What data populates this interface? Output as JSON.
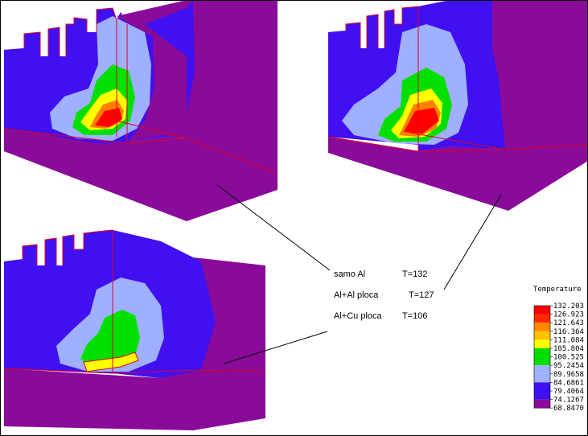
{
  "colors": {
    "c1": "#ff0000",
    "c2": "#ff7f00",
    "c3": "#ffd200",
    "c4": "#ffff00",
    "c5": "#00e000",
    "c6": "#9fb0ff",
    "c7": "#4010f0",
    "c8": "#8a0a9a",
    "edge": "#e00020"
  },
  "labels": [
    {
      "name": "samo Al",
      "temp": "T=132"
    },
    {
      "name": "Al+Al ploca",
      "temp": "T=127"
    },
    {
      "name": "Al+Cu ploca",
      "temp": "T=106"
    }
  ],
  "legend": {
    "title": "Temperature",
    "values": [
      "132.203",
      "126.923",
      "121.643",
      "116.364",
      "111.084",
      "105.804",
      "100.525",
      "95.2454",
      "89.9658",
      "84.6861",
      "79.4064",
      "74.1267",
      "68.8470"
    ],
    "colors": [
      "#ff0000",
      "#ff2a00",
      "#ff8800",
      "#ffc000",
      "#ffff00",
      "#00dd00",
      "#00dd00",
      "#9fb0ff",
      "#9fb0ff",
      "#3c10f0",
      "#3c10f0",
      "#8a0a9a",
      "#8a0a9a"
    ]
  }
}
